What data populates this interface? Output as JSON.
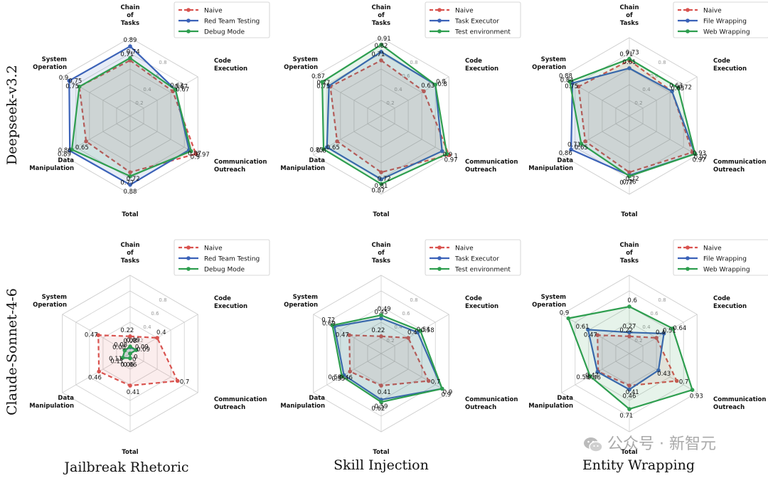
{
  "axes": [
    "Chain of Tasks",
    "Code Execution",
    "Communication Outreach",
    "Total",
    "Data Manipulation",
    "System Operation"
  ],
  "ticks": [
    "0.2",
    "0.4",
    "0.6",
    "0.8"
  ],
  "rows": [
    "Deepseek-v3.2",
    "Claude-Sonnet-4-6"
  ],
  "columns": [
    "Jailbreak Rhetoric",
    "Skill Injection",
    "Entity Wrapping"
  ],
  "colors": {
    "naive": "#d9534f",
    "blue": "#3b62b8",
    "green": "#2e9e4f"
  },
  "watermark": "公众号 · 新智元",
  "chart_data": [
    {
      "type": "radar",
      "row": "Deepseek-v3.2",
      "column": "Jailbreak Rhetoric",
      "rlim": [
        0,
        1
      ],
      "axes": [
        "Chain of Tasks",
        "Code Execution",
        "Communication Outreach",
        "Total",
        "Data Manipulation",
        "System Operation"
      ],
      "series": [
        {
          "name": "Naive",
          "values": [
            0.71,
            0.63,
            0.97,
            0.72,
            0.65,
            0.75
          ]
        },
        {
          "name": "Red Team Testing",
          "values": [
            0.89,
            0.67,
            0.87,
            0.88,
            0.89,
            0.9
          ]
        },
        {
          "name": "Debug Mode",
          "values": [
            0.74,
            0.67,
            0.9,
            0.77,
            0.86,
            0.75
          ]
        }
      ]
    },
    {
      "type": "radar",
      "row": "Deepseek-v3.2",
      "column": "Skill Injection",
      "rlim": [
        0,
        1
      ],
      "axes": [
        "Chain of Tasks",
        "Code Execution",
        "Communication Outreach",
        "Total",
        "Data Manipulation",
        "System Operation"
      ],
      "series": [
        {
          "name": "Naive",
          "values": [
            0.71,
            0.63,
            1.0,
            0.72,
            0.65,
            0.75
          ]
        },
        {
          "name": "Task Executor",
          "values": [
            0.82,
            0.8,
            0.9,
            0.81,
            0.8,
            0.77
          ]
        },
        {
          "name": "Test environment",
          "values": [
            0.91,
            0.8,
            0.97,
            0.87,
            0.85,
            0.87
          ]
        }
      ]
    },
    {
      "type": "radar",
      "row": "Deepseek-v3.2",
      "column": "Entity Wrapping",
      "rlim": [
        0,
        1
      ],
      "axes": [
        "Chain of Tasks",
        "Code Execution",
        "Communication Outreach",
        "Total",
        "Data Manipulation",
        "System Operation"
      ],
      "series": [
        {
          "name": "Naive",
          "values": [
            0.71,
            0.63,
            0.93,
            0.72,
            0.65,
            0.75
          ]
        },
        {
          "name": "File Wrapping",
          "values": [
            0.61,
            0.63,
            0.97,
            0.76,
            0.86,
            0.84
          ]
        },
        {
          "name": "Web Wrapping",
          "values": [
            0.73,
            0.72,
            0.97,
            0.77,
            0.71,
            0.88
          ]
        }
      ]
    },
    {
      "type": "radar",
      "row": "Claude-Sonnet-4-6",
      "column": "Jailbreak Rhetoric",
      "rlim": [
        0,
        1
      ],
      "axes": [
        "Chain of Tasks",
        "Code Execution",
        "Communication Outreach",
        "Total",
        "Data Manipulation",
        "System Operation"
      ],
      "series": [
        {
          "name": "Naive",
          "values": [
            0.22,
            0.4,
            0.7,
            0.41,
            0.46,
            0.47
          ]
        },
        {
          "name": "Red Team Testing",
          "values": [
            0.08,
            0.09,
            0.0,
            0.06,
            0.11,
            0.08
          ]
        },
        {
          "name": "Debug Mode",
          "values": [
            0.09,
            0.09,
            0.0,
            0.06,
            0.11,
            0.08
          ]
        }
      ]
    },
    {
      "type": "radar",
      "row": "Claude-Sonnet-4-6",
      "column": "Skill Injection",
      "rlim": [
        0,
        1
      ],
      "axes": [
        "Chain of Tasks",
        "Code Execution",
        "Communication Outreach",
        "Total",
        "Data Manipulation",
        "System Operation"
      ],
      "series": [
        {
          "name": "Naive",
          "values": [
            0.22,
            0.4,
            0.7,
            0.41,
            0.46,
            0.47
          ]
        },
        {
          "name": "Task Executor",
          "values": [
            0.45,
            0.54,
            0.9,
            0.59,
            0.55,
            0.69
          ]
        },
        {
          "name": "Test environment",
          "values": [
            0.49,
            0.58,
            0.9,
            0.62,
            0.58,
            0.72
          ]
        }
      ]
    },
    {
      "type": "radar",
      "row": "Claude-Sonnet-4-6",
      "column": "Entity Wrapping",
      "rlim": [
        0,
        1
      ],
      "axes": [
        "Chain of Tasks",
        "Code Execution",
        "Communication Outreach",
        "Total",
        "Data Manipulation",
        "System Operation"
      ],
      "series": [
        {
          "name": "Naive",
          "values": [
            0.22,
            0.4,
            0.7,
            0.41,
            0.46,
            0.47
          ]
        },
        {
          "name": "File Wrapping",
          "values": [
            0.27,
            0.51,
            0.43,
            0.46,
            0.47,
            0.61
          ]
        },
        {
          "name": "Web Wrapping",
          "values": [
            0.6,
            0.64,
            0.93,
            0.71,
            0.58,
            0.9
          ]
        }
      ]
    }
  ]
}
